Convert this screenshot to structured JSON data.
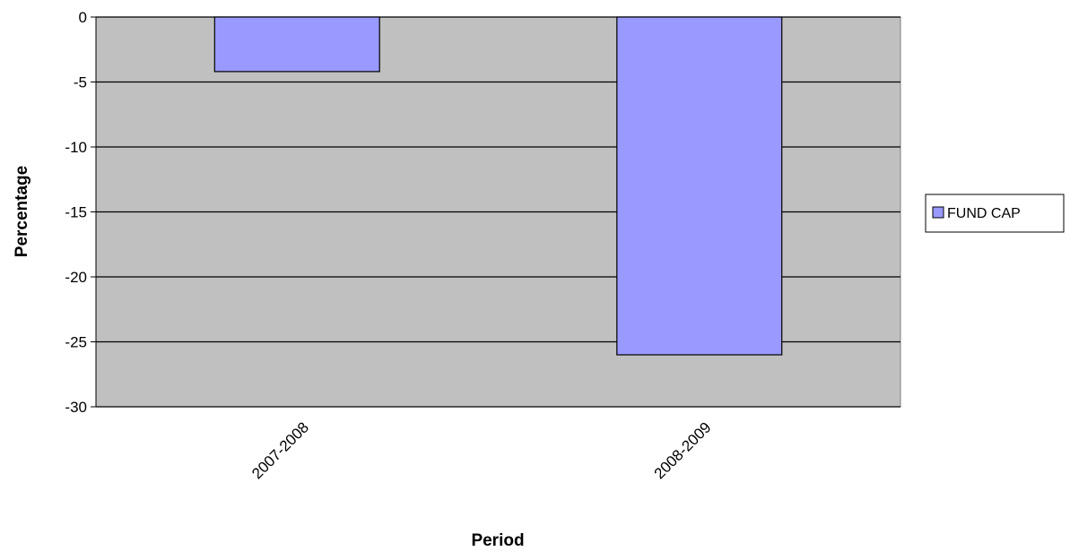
{
  "chart_data": {
    "type": "bar",
    "title": "",
    "xlabel": "Period",
    "ylabel": "Percentage",
    "categories": [
      "2007-2008",
      "2008-2009"
    ],
    "series": [
      {
        "name": "FUND CAP",
        "values": [
          -4.2,
          -26.0
        ],
        "color": "#9999ff"
      }
    ],
    "ylim": [
      -30,
      0
    ],
    "yticks": [
      0,
      -5,
      -10,
      -15,
      -20,
      -25,
      -30
    ],
    "grid": true,
    "legend": "right",
    "colors": {
      "plot_background": "#c0c0c0",
      "gridline": "#000000",
      "bar_outline": "#000000"
    }
  }
}
